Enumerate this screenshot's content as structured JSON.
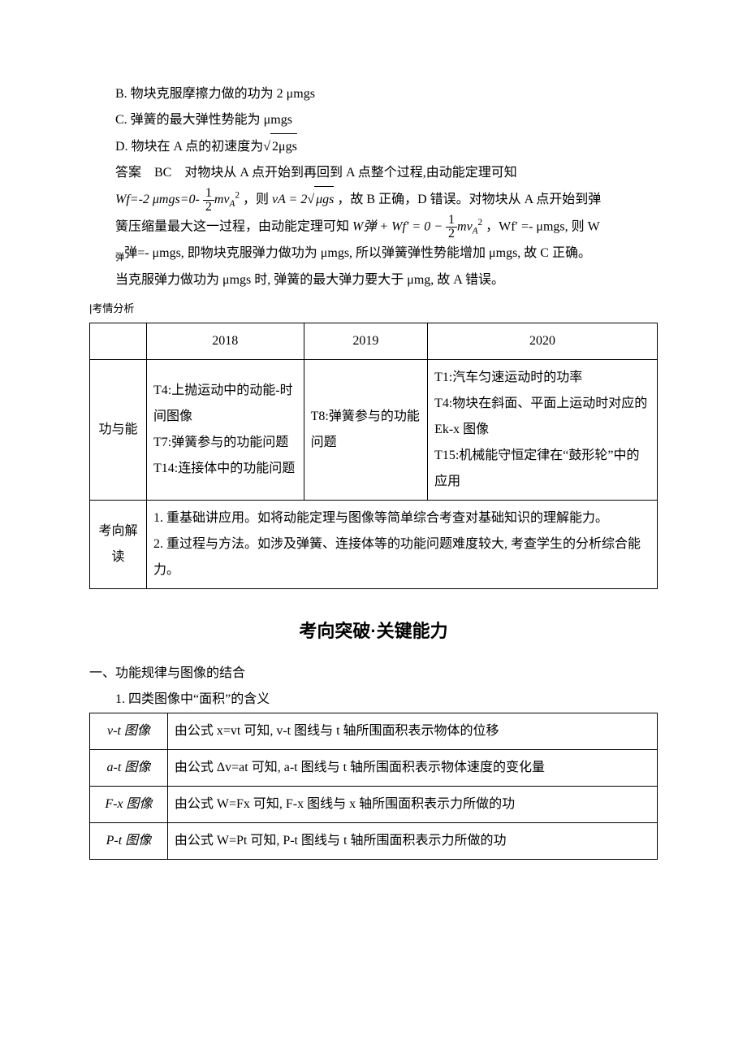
{
  "options": {
    "B": "B. 物块克服摩擦力做的功为 2 μmgs",
    "C": "C. 弹簧的最大弹性势能为 μmgs",
    "D_pre": "D. 物块在 A 点的初速度为",
    "D_sqrt": "2μgs"
  },
  "answer": {
    "label": "答案　BC　",
    "l1_a": "对物块从 A 点开始到再回到 A 点整个过程,由动能定理可知",
    "l2_a": "Wf=-2 μmgs=0-",
    "l2_frac_num": "1",
    "l2_frac_den": "2",
    "l2_b": "mv",
    "l2_c": "，则",
    "l2_d": "vA = 2",
    "l2_sqrt": "μgs",
    "l2_e": "，故 B 正确，D 错误。对物块从 A 点开始到弹",
    "l3_a": "簧压缩量最大这一过程，由动能定理可知",
    "l3_b": "W弹 + Wf′ = 0 − ",
    "l3_frac_num": "1",
    "l3_frac_den": "2",
    "l3_c": "mv",
    "l3_d": "，Wf′ =- μmgs, 则 W",
    "l4": "弹=- μmgs, 即物块克服弹力做功为 μmgs, 所以弹簧弹性势能增加 μmgs, 故 C 正确。",
    "l5": "当克服弹力做功为 μmgs 时, 弹簧的最大弹力要大于 μmg, 故 A 错误。"
  },
  "heading1": "考情分析",
  "table1": {
    "h1": "2018",
    "h2": "2019",
    "h3": "2020",
    "r1_label": "功与能",
    "r1_c1": "T4:上抛运动中的动能-时间图像\nT7:弹簧参与的功能问题\nT14:连接体中的功能问题",
    "r1_c2": "T8:弹簧参与的功能问题",
    "r1_c3": "T1:汽车匀速运动时的功率\nT4:物块在斜面、平面上运动时对应的 Ek-x 图像\nT15:机械能守恒定律在“鼓形轮”中的应用",
    "r2_label": "考向解读",
    "r2_c": "1. 重基础讲应用。如将动能定理与图像等简单综合考查对基础知识的理解能力。\n2. 重过程与方法。如涉及弹簧、连接体等的功能问题难度较大, 考查学生的分析综合能力。"
  },
  "section_title": "考向突破·关键能力",
  "sec1_h": "一、功能规律与图像的结合",
  "sec1_sub": "1. 四类图像中“面积”的含义",
  "table2": {
    "r1_a": "v-t 图像",
    "r1_b": "由公式 x=vt 可知, v-t 图线与 t 轴所围面积表示物体的位移",
    "r2_a": "a-t 图像",
    "r2_b": "由公式 Δv=at 可知, a-t 图线与 t 轴所围面积表示物体速度的变化量",
    "r3_a": "F-x 图像",
    "r3_b": "由公式 W=Fx 可知, F-x 图线与 x 轴所围面积表示力所做的功",
    "r4_a": "P-t 图像",
    "r4_b": "由公式 W=Pt 可知, P-t 图线与 t 轴所围面积表示力所做的功"
  }
}
